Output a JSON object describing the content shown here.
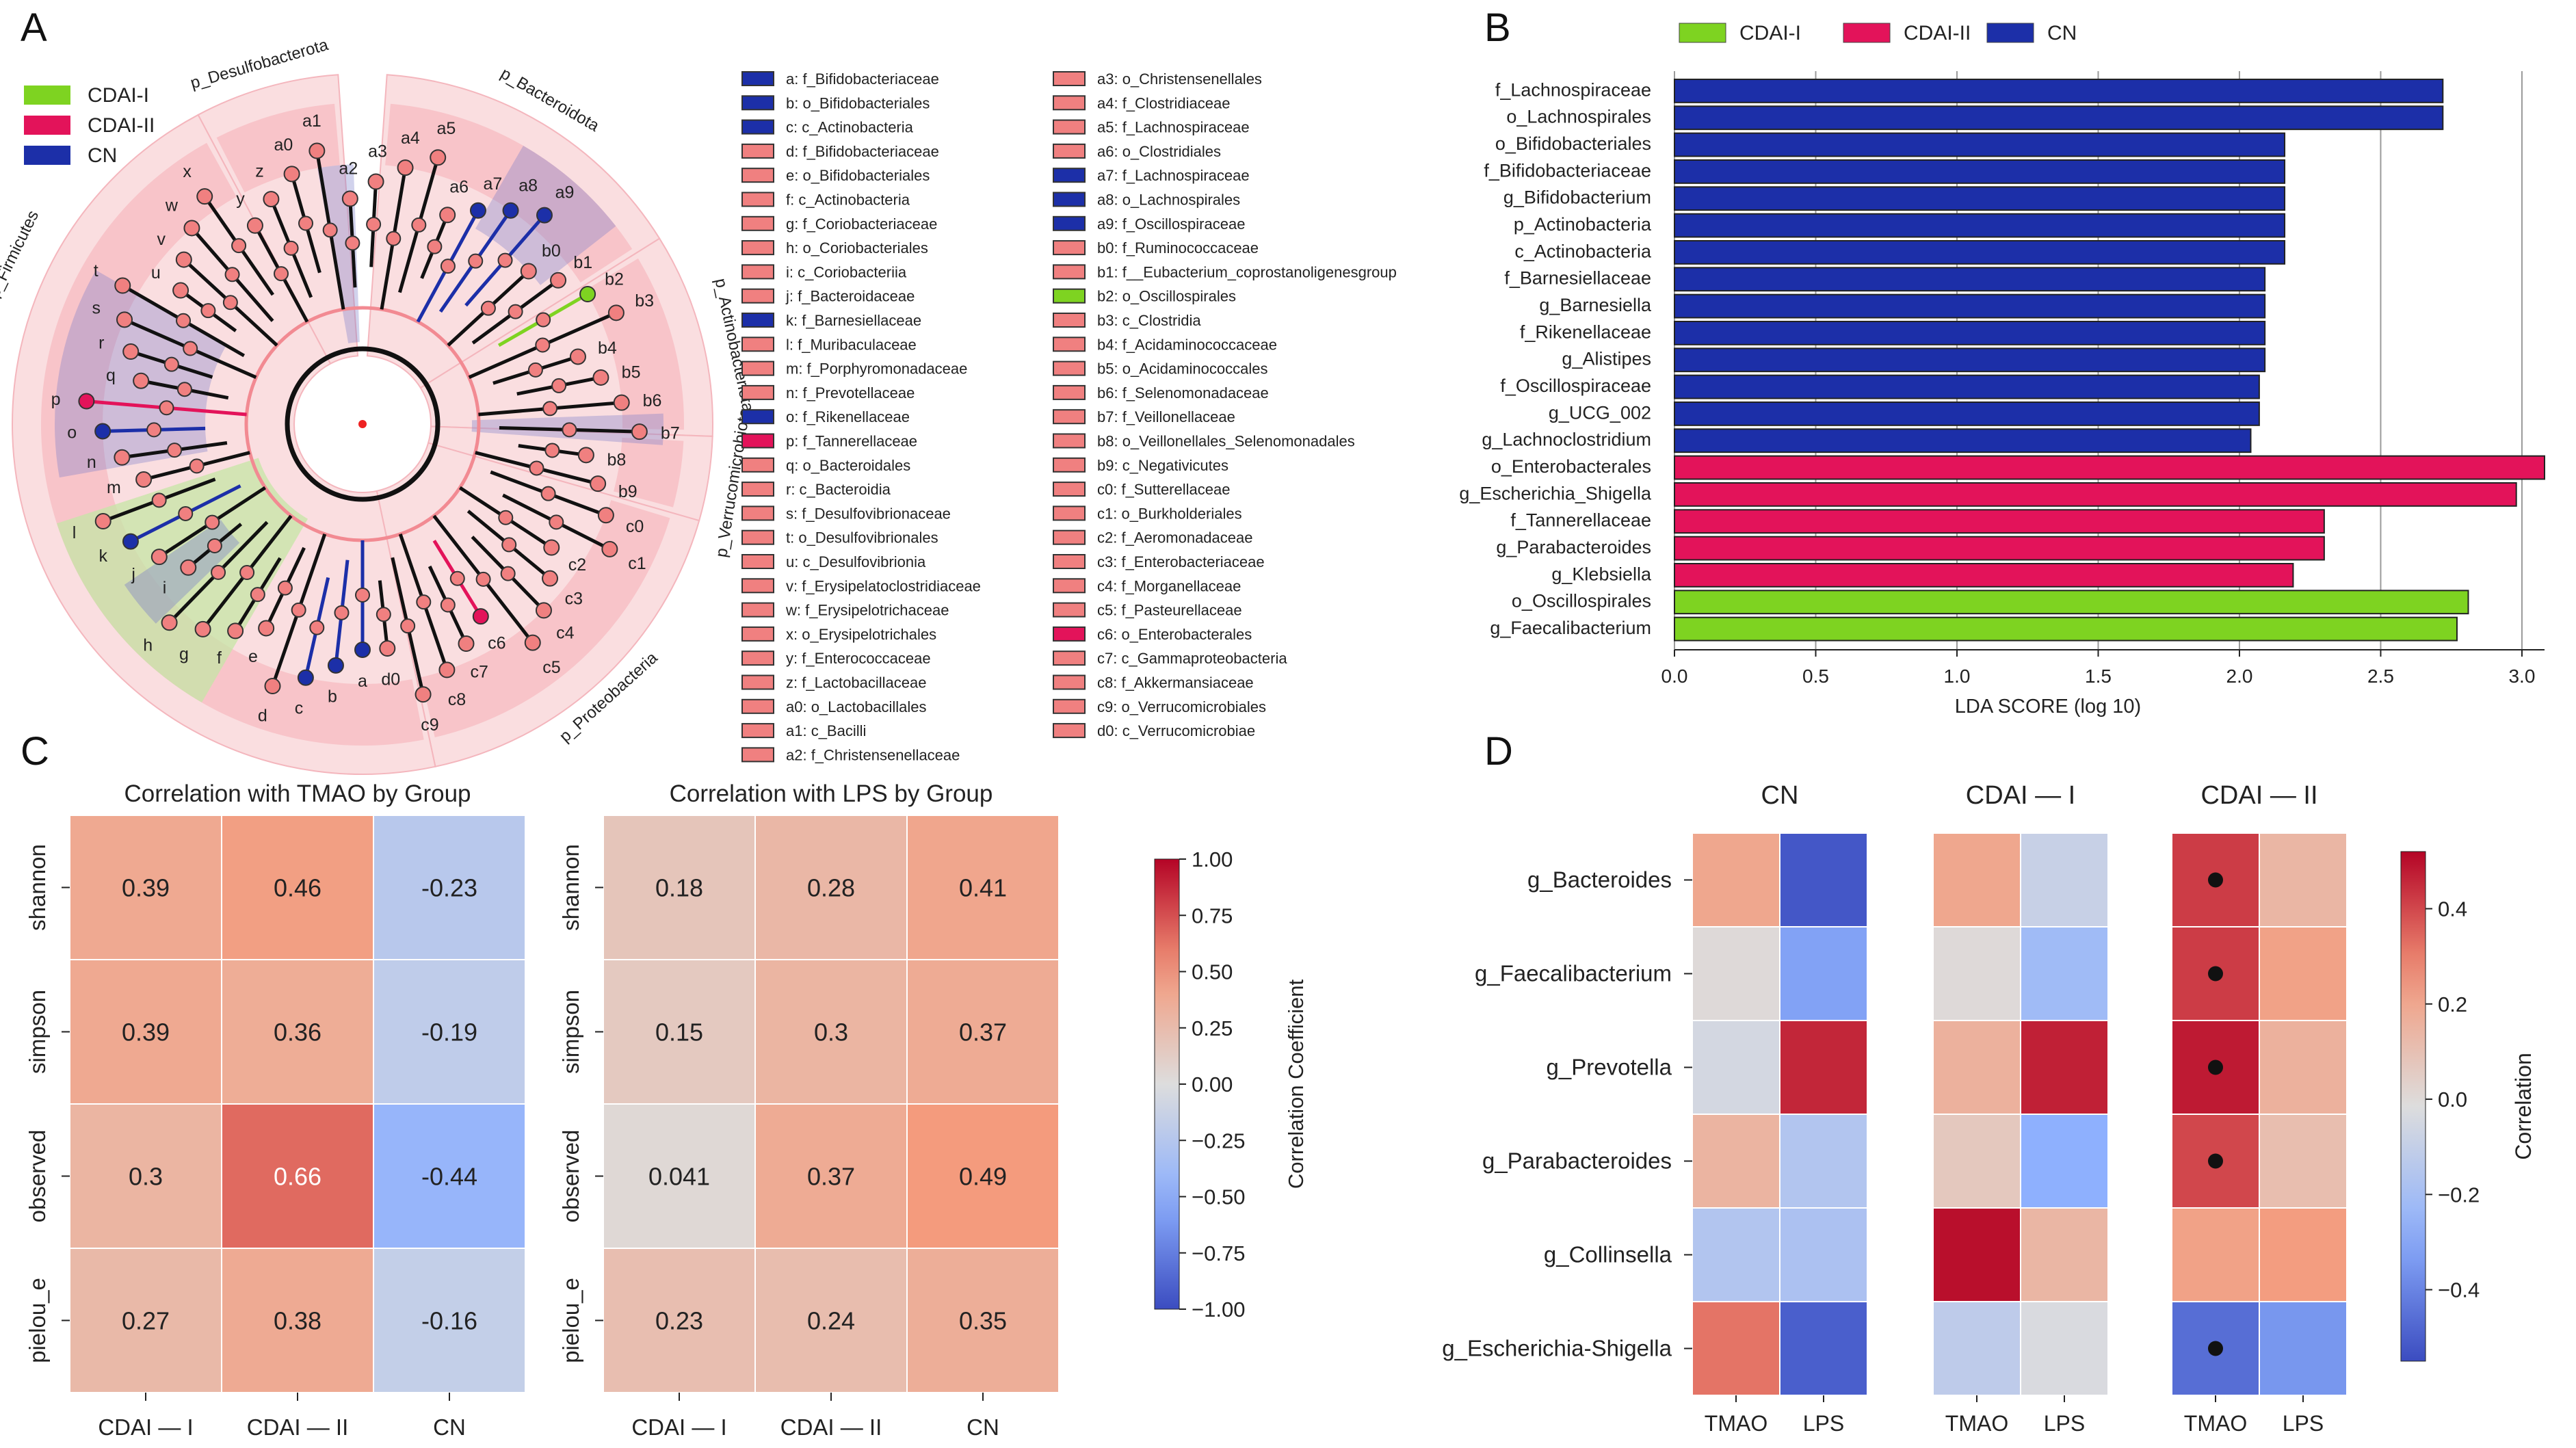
{
  "chart_data": [
    {
      "panel": "A",
      "type": "cladogram",
      "legend": [
        {
          "name": "CDAI-I",
          "color": "#7ed321"
        },
        {
          "name": "CDAI-II",
          "color": "#e3135a"
        },
        {
          "name": "CN",
          "color": "#1c2fa8"
        }
      ],
      "phylum_labels": [
        "p_Desulfobacterota",
        "p_Bacteroidota",
        "p_Actinobacteriota",
        "p_Verrucomicrobiota",
        "p_Proteobacteria",
        "p_Firmicutes"
      ],
      "node_labels": [
        "a",
        "b",
        "c",
        "d",
        "e",
        "f",
        "g",
        "h",
        "i",
        "j",
        "k",
        "l",
        "m",
        "n",
        "o",
        "p",
        "q",
        "r",
        "s",
        "t",
        "u",
        "v",
        "w",
        "x",
        "y",
        "z",
        "a0",
        "a1",
        "a2",
        "a3",
        "a4",
        "a5",
        "a6",
        "a7",
        "a8",
        "a9",
        "b0",
        "b1",
        "b2",
        "b3",
        "b4",
        "b5",
        "b6",
        "b7",
        "b8",
        "b9",
        "c0",
        "c1",
        "c2",
        "c3",
        "c4",
        "c5",
        "c6",
        "c7",
        "c8",
        "c9",
        "d0"
      ],
      "key": [
        {
          "code": "a",
          "name": "f_Bifidobacteriaceae",
          "group": "CN"
        },
        {
          "code": "b",
          "name": "o_Bifidobacteriales",
          "group": "CN"
        },
        {
          "code": "c",
          "name": "c_Actinobacteria",
          "group": "CN"
        },
        {
          "code": "d",
          "name": "f_Bifidobacteriaceae",
          "group": "none"
        },
        {
          "code": "e",
          "name": "o_Bifidobacteriales",
          "group": "none"
        },
        {
          "code": "f",
          "name": "c_Actinobacteria",
          "group": "none"
        },
        {
          "code": "g",
          "name": "f_Coriobacteriaceae",
          "group": "none"
        },
        {
          "code": "h",
          "name": "o_Coriobacteriales",
          "group": "none"
        },
        {
          "code": "i",
          "name": "c_Coriobacteriia",
          "group": "none"
        },
        {
          "code": "j",
          "name": "f_Bacteroidaceae",
          "group": "none"
        },
        {
          "code": "k",
          "name": "f_Barnesiellaceae",
          "group": "CN"
        },
        {
          "code": "l",
          "name": "f_Muribaculaceae",
          "group": "none"
        },
        {
          "code": "m",
          "name": "f_Porphyromonadaceae",
          "group": "none"
        },
        {
          "code": "n",
          "name": "f_Prevotellaceae",
          "group": "none"
        },
        {
          "code": "o",
          "name": "f_Rikenellaceae",
          "group": "CN"
        },
        {
          "code": "p",
          "name": "f_Tannerellaceae",
          "group": "CDAI-II"
        },
        {
          "code": "q",
          "name": "o_Bacteroidales",
          "group": "none"
        },
        {
          "code": "r",
          "name": "c_Bacteroidia",
          "group": "none"
        },
        {
          "code": "s",
          "name": "f_Desulfovibrionaceae",
          "group": "none"
        },
        {
          "code": "t",
          "name": "o_Desulfovibrionales",
          "group": "none"
        },
        {
          "code": "u",
          "name": "c_Desulfovibrionia",
          "group": "none"
        },
        {
          "code": "v",
          "name": "f_Erysipelatoclostridiaceae",
          "group": "none"
        },
        {
          "code": "w",
          "name": "f_Erysipelotrichaceae",
          "group": "none"
        },
        {
          "code": "x",
          "name": "o_Erysipelotrichales",
          "group": "none"
        },
        {
          "code": "y",
          "name": "f_Enterococcaceae",
          "group": "none"
        },
        {
          "code": "z",
          "name": "f_Lactobacillaceae",
          "group": "none"
        },
        {
          "code": "a0",
          "name": "o_Lactobacillales",
          "group": "none"
        },
        {
          "code": "a1",
          "name": "c_Bacilli",
          "group": "none"
        },
        {
          "code": "a2",
          "name": "f_Christensenellaceae",
          "group": "none"
        },
        {
          "code": "a3",
          "name": "o_Christensenellales",
          "group": "none"
        },
        {
          "code": "a4",
          "name": "f_Clostridiaceae",
          "group": "none"
        },
        {
          "code": "a5",
          "name": "f_Lachnospiraceae",
          "group": "none"
        },
        {
          "code": "a6",
          "name": "o_Clostridiales",
          "group": "none"
        },
        {
          "code": "a7",
          "name": "f_Lachnospiraceae",
          "group": "CN"
        },
        {
          "code": "a8",
          "name": "o_Lachnospirales",
          "group": "CN"
        },
        {
          "code": "a9",
          "name": "f_Oscillospiraceae",
          "group": "CN"
        },
        {
          "code": "b0",
          "name": "f_Ruminococcaceae",
          "group": "none"
        },
        {
          "code": "b1",
          "name": "f__Eubacterium_coprostanoligenesgroup",
          "group": "none"
        },
        {
          "code": "b2",
          "name": "o_Oscillospirales",
          "group": "CDAI-I"
        },
        {
          "code": "b3",
          "name": "c_Clostridia",
          "group": "none"
        },
        {
          "code": "b4",
          "name": "f_Acidaminococcaceae",
          "group": "none"
        },
        {
          "code": "b5",
          "name": "o_Acidaminococcales",
          "group": "none"
        },
        {
          "code": "b6",
          "name": "f_Selenomonadaceae",
          "group": "none"
        },
        {
          "code": "b7",
          "name": "f_Veillonellaceae",
          "group": "none"
        },
        {
          "code": "b8",
          "name": "o_Veillonellales_Selenomonadales",
          "group": "none"
        },
        {
          "code": "b9",
          "name": "c_Negativicutes",
          "group": "none"
        },
        {
          "code": "c0",
          "name": "f_Sutterellaceae",
          "group": "none"
        },
        {
          "code": "c1",
          "name": "o_Burkholderiales",
          "group": "none"
        },
        {
          "code": "c2",
          "name": "f_Aeromonadaceae",
          "group": "none"
        },
        {
          "code": "c3",
          "name": "f_Enterobacteriaceae",
          "group": "none"
        },
        {
          "code": "c4",
          "name": "f_Morganellaceae",
          "group": "none"
        },
        {
          "code": "c5",
          "name": "f_Pasteurellaceae",
          "group": "none"
        },
        {
          "code": "c6",
          "name": "o_Enterobacterales",
          "group": "CDAI-II"
        },
        {
          "code": "c7",
          "name": "c_Gammaproteobacteria",
          "group": "none"
        },
        {
          "code": "c8",
          "name": "f_Akkermansiaceae",
          "group": "none"
        },
        {
          "code": "c9",
          "name": "o_Verrucomicrobiales",
          "group": "none"
        },
        {
          "code": "d0",
          "name": "c_Verrucomicrobiae",
          "group": "none"
        }
      ]
    },
    {
      "panel": "B",
      "type": "bar",
      "orientation": "horizontal",
      "xlabel": "LDA SCORE (log 10)",
      "xlim": [
        0,
        3.08
      ],
      "xticks": [
        0.0,
        0.5,
        1.0,
        1.5,
        2.0,
        2.5,
        3.0
      ],
      "legend": [
        {
          "name": "CDAI-I",
          "color": "#7ed321"
        },
        {
          "name": "CDAI-II",
          "color": "#e3135a"
        },
        {
          "name": "CN",
          "color": "#1c2fa8"
        }
      ],
      "bars": [
        {
          "label": "f_Lachnospiraceae",
          "value": 2.72,
          "group": "CN"
        },
        {
          "label": "o_Lachnospirales",
          "value": 2.72,
          "group": "CN"
        },
        {
          "label": "o_Bifidobacteriales",
          "value": 2.16,
          "group": "CN"
        },
        {
          "label": "f_Bifidobacteriaceae",
          "value": 2.16,
          "group": "CN"
        },
        {
          "label": "g_Bifidobacterium",
          "value": 2.16,
          "group": "CN"
        },
        {
          "label": "p_Actinobacteria",
          "value": 2.16,
          "group": "CN"
        },
        {
          "label": "c_Actinobacteria",
          "value": 2.16,
          "group": "CN"
        },
        {
          "label": "f_Barnesiellaceae",
          "value": 2.09,
          "group": "CN"
        },
        {
          "label": "g_Barnesiella",
          "value": 2.09,
          "group": "CN"
        },
        {
          "label": "f_Rikenellaceae",
          "value": 2.09,
          "group": "CN"
        },
        {
          "label": "g_Alistipes",
          "value": 2.09,
          "group": "CN"
        },
        {
          "label": "f_Oscillospiraceae",
          "value": 2.07,
          "group": "CN"
        },
        {
          "label": "g_UCG_002",
          "value": 2.07,
          "group": "CN"
        },
        {
          "label": "g_Lachnoclostridium",
          "value": 2.04,
          "group": "CN"
        },
        {
          "label": "o_Enterobacterales",
          "value": 3.08,
          "group": "CDAI-II"
        },
        {
          "label": "g_Escherichia_Shigella",
          "value": 2.98,
          "group": "CDAI-II"
        },
        {
          "label": "f_Tannerellaceae",
          "value": 2.3,
          "group": "CDAI-II"
        },
        {
          "label": "g_Parabacteroides",
          "value": 2.3,
          "group": "CDAI-II"
        },
        {
          "label": "g_Klebsiella",
          "value": 2.19,
          "group": "CDAI-II"
        },
        {
          "label": "o_Oscillospirales",
          "value": 2.81,
          "group": "CDAI-I"
        },
        {
          "label": "g_Faecalibacterium",
          "value": 2.77,
          "group": "CDAI-I"
        }
      ]
    },
    {
      "panel": "C",
      "type": "heatmap",
      "titles": [
        "Correlation with TMAO by Group",
        "Correlation with LPS by Group"
      ],
      "rows": [
        "shannon",
        "simpson",
        "observed",
        "pielou_e"
      ],
      "columns": [
        "CDAI — I",
        "CDAI — II",
        "CN"
      ],
      "tmao": [
        [
          0.39,
          0.46,
          -0.23
        ],
        [
          0.39,
          0.36,
          -0.19
        ],
        [
          0.3,
          0.66,
          -0.44
        ],
        [
          0.27,
          0.38,
          -0.16
        ]
      ],
      "lps": [
        [
          0.18,
          0.28,
          0.41
        ],
        [
          0.15,
          0.3,
          0.37
        ],
        [
          0.041,
          0.37,
          0.49
        ],
        [
          0.23,
          0.24,
          0.35
        ]
      ],
      "colorbar": {
        "label": "Correlation Coefficient",
        "min": -1.0,
        "max": 1.0,
        "ticks": [
          "1.00",
          "0.75",
          "0.50",
          "0.25",
          "0.00",
          "−0.25",
          "−0.50",
          "−0.75",
          "−1.00"
        ]
      }
    },
    {
      "panel": "D",
      "type": "heatmap",
      "groups": [
        "CN",
        "CDAI — I",
        "CDAI — II"
      ],
      "columns": [
        "TMAO",
        "LPS"
      ],
      "rows": [
        "g_Bacteroides",
        "g_Faecalibacterium",
        "g_Prevotella",
        "g_Parabacteroides",
        "g_Collinsella",
        "g_Escherichia-Shigella"
      ],
      "values": {
        "CN": [
          [
            0.2,
            -0.52
          ],
          [
            0.0,
            -0.32
          ],
          [
            -0.05,
            0.46
          ],
          [
            0.15,
            -0.16
          ],
          [
            -0.16,
            -0.18
          ],
          [
            0.32,
            -0.5
          ]
        ],
        "CDAI — I": [
          [
            0.2,
            -0.09
          ],
          [
            0.0,
            -0.22
          ],
          [
            0.16,
            0.47
          ],
          [
            0.07,
            -0.28
          ],
          [
            0.5,
            0.14
          ],
          [
            -0.12,
            -0.03
          ]
        ],
        "CDAI — II": [
          [
            0.42,
            0.14
          ],
          [
            0.42,
            0.22
          ],
          [
            0.48,
            0.16
          ],
          [
            0.4,
            0.11
          ],
          [
            0.22,
            0.24
          ],
          [
            -0.46,
            -0.35
          ]
        ]
      },
      "significant": {
        "CDAI — II": {
          "TMAO": [
            true,
            true,
            true,
            true,
            false,
            true
          ]
        }
      },
      "colorbar": {
        "label": "Correlation",
        "min": -0.55,
        "max": 0.52,
        "ticks": [
          "0.4",
          "0.2",
          "0.0",
          "−0.2",
          "−0.4"
        ]
      }
    }
  ],
  "panel_letters": [
    "A",
    "B",
    "C",
    "D"
  ],
  "colors": {
    "cdai1": "#7ed321",
    "cdai2": "#e3135a",
    "cn": "#1c2fa8",
    "neutral": "#f08080"
  }
}
